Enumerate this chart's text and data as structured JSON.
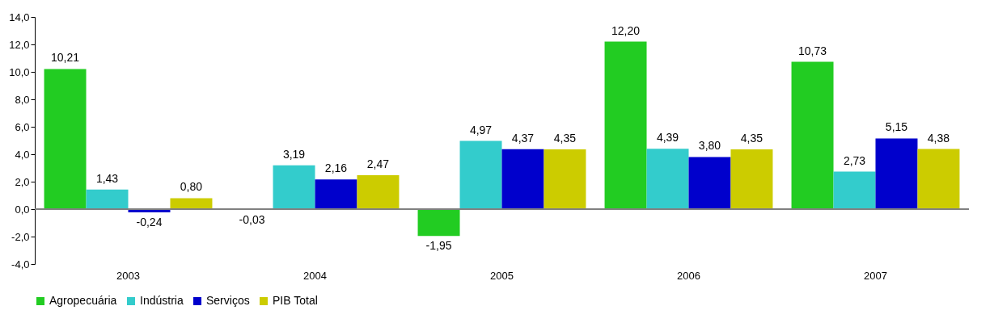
{
  "chart_data": {
    "type": "bar",
    "categories": [
      "2003",
      "2004",
      "2005",
      "2006",
      "2007"
    ],
    "series": [
      {
        "name": "Agropecuária",
        "color": "#22cc22",
        "values": [
          10.21,
          -0.03,
          -1.95,
          12.2,
          10.73
        ],
        "value_labels": [
          "10,21",
          "-0,03",
          "-1,95",
          "12,20",
          "10,73"
        ]
      },
      {
        "name": "Indústria",
        "color": "#33cccc",
        "values": [
          1.43,
          3.19,
          4.97,
          4.39,
          2.73
        ],
        "value_labels": [
          "1,43",
          "3,19",
          "4,97",
          "4,39",
          "2,73"
        ]
      },
      {
        "name": "Serviços",
        "color": "#0000cc",
        "values": [
          -0.24,
          2.16,
          4.37,
          3.8,
          5.15
        ],
        "value_labels": [
          "-0,24",
          "2,16",
          "4,37",
          "3,80",
          "5,15"
        ]
      },
      {
        "name": "PIB Total",
        "color": "#cccc00",
        "values": [
          0.8,
          2.47,
          4.35,
          4.35,
          4.38
        ],
        "value_labels": [
          "0,80",
          "2,47",
          "4,35",
          "4,35",
          "4,38"
        ]
      }
    ],
    "ylim": [
      -4,
      14
    ],
    "yticks": [
      {
        "value": -4,
        "label": "-4,0"
      },
      {
        "value": -2,
        "label": "-2,0"
      },
      {
        "value": 0,
        "label": "0,0"
      },
      {
        "value": 2,
        "label": "2,0"
      },
      {
        "value": 4,
        "label": "4,0"
      },
      {
        "value": 6,
        "label": "6,0"
      },
      {
        "value": 8,
        "label": "8,0"
      },
      {
        "value": 10,
        "label": "10,0"
      },
      {
        "value": 12,
        "label": "12,0"
      },
      {
        "value": 14,
        "label": "14,0"
      }
    ],
    "legend": "bottom"
  }
}
